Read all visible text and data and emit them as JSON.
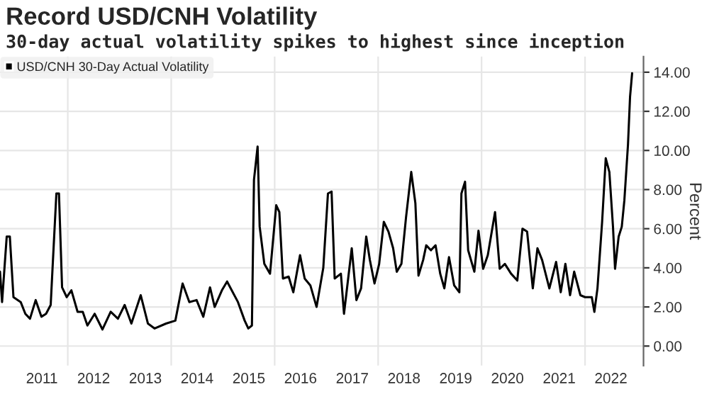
{
  "chart_data": {
    "type": "line",
    "title": "Record USD/CNH Volatility",
    "subtitle": "30-day actual volatility spikes to highest since inception",
    "ylabel": "Percent",
    "x": [
      2010.69,
      2010.73,
      2010.82,
      2010.88,
      2010.95,
      2011.09,
      2011.18,
      2011.27,
      2011.38,
      2011.49,
      2011.58,
      2011.67,
      2011.71,
      2011.78,
      2011.83,
      2011.89,
      2011.98,
      2012.07,
      2012.19,
      2012.29,
      2012.38,
      2012.52,
      2012.67,
      2012.83,
      2012.97,
      2013.1,
      2013.23,
      2013.41,
      2013.55,
      2013.68,
      2013.9,
      2014.08,
      2014.22,
      2014.35,
      2014.49,
      2014.62,
      2014.75,
      2014.84,
      2014.98,
      2015.08,
      2015.29,
      2015.42,
      2015.49,
      2015.56,
      2015.6,
      2015.67,
      2015.71,
      2015.8,
      2015.91,
      2016.03,
      2016.09,
      2016.16,
      2016.27,
      2016.36,
      2016.49,
      2016.58,
      2016.69,
      2016.81,
      2016.94,
      2017.03,
      2017.1,
      2017.16,
      2017.28,
      2017.34,
      2017.49,
      2017.58,
      2017.67,
      2017.77,
      2017.84,
      2017.93,
      2018.02,
      2018.11,
      2018.2,
      2018.29,
      2018.36,
      2018.45,
      2018.54,
      2018.64,
      2018.72,
      2018.78,
      2018.87,
      2018.93,
      2019.02,
      2019.11,
      2019.2,
      2019.28,
      2019.37,
      2019.47,
      2019.57,
      2019.61,
      2019.68,
      2019.74,
      2019.86,
      2019.94,
      2020.03,
      2020.12,
      2020.26,
      2020.35,
      2020.45,
      2020.57,
      2020.69,
      2020.79,
      2020.88,
      2020.99,
      2021.08,
      2021.17,
      2021.31,
      2021.44,
      2021.53,
      2021.62,
      2021.71,
      2021.79,
      2021.91,
      2022.0,
      2022.13,
      2022.18,
      2022.24,
      2022.33,
      2022.4,
      2022.47,
      2022.54,
      2022.58,
      2022.65,
      2022.71,
      2022.76,
      2022.83,
      2022.87,
      2022.91
    ],
    "series": [
      {
        "name": "USD/CNH 30-Day Actual Volatility",
        "color": "#000000",
        "values": [
          3.8,
          2.25,
          5.6,
          5.6,
          2.5,
          2.25,
          1.65,
          1.4,
          2.35,
          1.5,
          1.65,
          2.1,
          4.2,
          7.8,
          7.8,
          3.0,
          2.5,
          2.85,
          1.75,
          1.75,
          1.05,
          1.65,
          0.85,
          1.75,
          1.4,
          2.1,
          1.15,
          2.6,
          1.15,
          0.9,
          1.15,
          1.3,
          3.2,
          2.25,
          2.35,
          1.5,
          3.0,
          2.0,
          2.85,
          3.3,
          2.25,
          1.3,
          0.9,
          1.05,
          8.5,
          10.2,
          6.1,
          4.2,
          3.7,
          7.2,
          6.85,
          3.45,
          3.55,
          2.75,
          4.65,
          3.45,
          3.1,
          2.0,
          4.0,
          7.8,
          7.9,
          3.45,
          3.7,
          1.65,
          5.0,
          2.35,
          2.95,
          5.6,
          4.4,
          3.2,
          4.2,
          6.35,
          5.85,
          5.0,
          3.8,
          4.2,
          6.6,
          8.9,
          7.3,
          3.6,
          4.4,
          5.15,
          4.9,
          5.15,
          3.7,
          2.95,
          4.55,
          3.1,
          2.75,
          7.8,
          8.4,
          4.9,
          3.8,
          5.9,
          3.95,
          4.65,
          6.85,
          3.95,
          4.2,
          3.7,
          3.35,
          6.0,
          5.85,
          2.95,
          5.0,
          4.4,
          2.95,
          4.3,
          2.75,
          4.2,
          2.6,
          3.8,
          2.6,
          2.5,
          2.5,
          1.75,
          2.95,
          6.35,
          9.6,
          8.9,
          6.1,
          3.95,
          5.6,
          6.1,
          7.45,
          10.3,
          12.75,
          13.95
        ]
      }
    ],
    "xlim": [
      2010.69,
      2023.13
    ],
    "xticks": [
      {
        "value": 2011.5,
        "label": "2011"
      },
      {
        "value": 2012,
        "label": null
      },
      {
        "value": 2012.5,
        "label": "2012"
      },
      {
        "value": 2013.5,
        "label": "2013"
      },
      {
        "value": 2014,
        "label": null
      },
      {
        "value": 2014.5,
        "label": "2014"
      },
      {
        "value": 2015.5,
        "label": "2015"
      },
      {
        "value": 2016,
        "label": null
      },
      {
        "value": 2016.5,
        "label": "2016"
      },
      {
        "value": 2017.5,
        "label": "2017"
      },
      {
        "value": 2018,
        "label": null
      },
      {
        "value": 2018.5,
        "label": "2018"
      },
      {
        "value": 2019.5,
        "label": "2019"
      },
      {
        "value": 2020,
        "label": null
      },
      {
        "value": 2020.5,
        "label": "2020"
      },
      {
        "value": 2021.5,
        "label": "2021"
      },
      {
        "value": 2022,
        "label": null
      },
      {
        "value": 2022.5,
        "label": "2022"
      }
    ],
    "ylim": [
      -1,
      14.8
    ],
    "yticks": [
      {
        "value": 0,
        "label": "0.00"
      },
      {
        "value": 2,
        "label": "2.00"
      },
      {
        "value": 4,
        "label": "4.00"
      },
      {
        "value": 6,
        "label": "6.00"
      },
      {
        "value": 8,
        "label": "8.00"
      },
      {
        "value": 10,
        "label": "10.00"
      },
      {
        "value": 12,
        "label": "12.00"
      },
      {
        "value": 14,
        "label": "14.00"
      }
    ],
    "grid": true,
    "legend": "top left",
    "line_style": "solid",
    "marker": "none"
  }
}
